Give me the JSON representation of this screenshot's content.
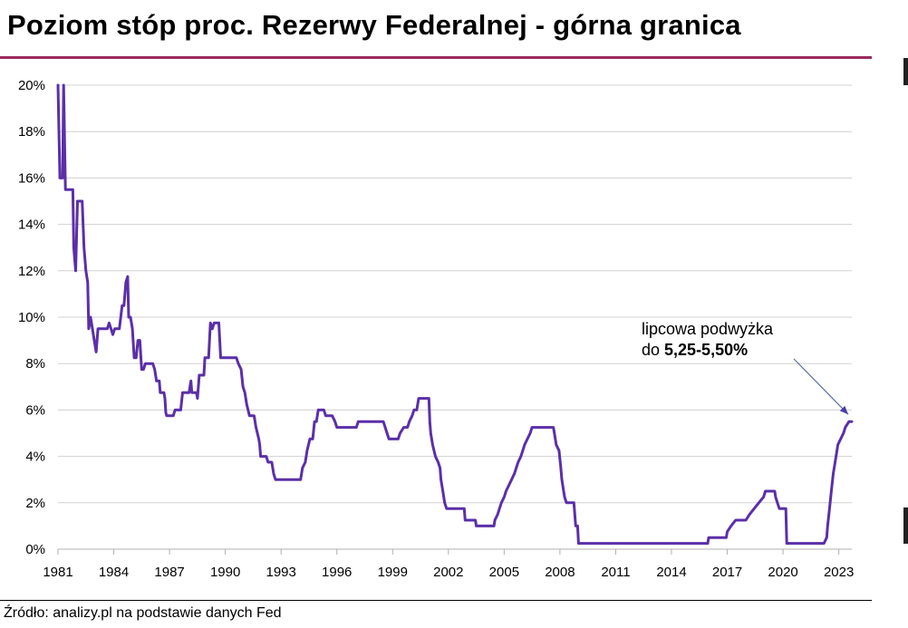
{
  "title": "Poziom stóp proc. Rezerwy Federalnej - górna granica",
  "source": "Źródło: analizy.pl na podstawie danych Fed",
  "colors": {
    "line": "#5b2fa8",
    "accent_rule": "#9c2a5e",
    "grid": "#d0d0d0"
  },
  "chart_data": {
    "type": "line",
    "title": "Poziom stóp proc. Rezerwy Federalnej - górna granica",
    "xlabel": "",
    "ylabel": "",
    "xlim": [
      1981,
      2023.7
    ],
    "ylim": [
      0,
      20
    ],
    "x_ticks": [
      1981,
      1984,
      1987,
      1990,
      1993,
      1996,
      1999,
      2002,
      2005,
      2008,
      2011,
      2014,
      2017,
      2020,
      2023
    ],
    "y_ticks": [
      0,
      2,
      4,
      6,
      8,
      10,
      12,
      14,
      16,
      18,
      20
    ],
    "y_tick_labels": [
      "0%",
      "2%",
      "4%",
      "6%",
      "8%",
      "10%",
      "12%",
      "14%",
      "16%",
      "18%",
      "20%"
    ],
    "grid": "horizontal",
    "legend": "none",
    "annotation": {
      "line1": "lipcowa podwyżka",
      "line2_prefix": "do ",
      "line2_bold": "5,25-5,50%"
    },
    "series": [
      {
        "values": [
          [
            1981.0,
            20.0
          ],
          [
            1981.1,
            16.0
          ],
          [
            1981.25,
            16.0
          ],
          [
            1981.3,
            20.0
          ],
          [
            1981.4,
            15.5
          ],
          [
            1981.8,
            15.5
          ],
          [
            1981.85,
            13.0
          ],
          [
            1981.95,
            12.0
          ],
          [
            1982.05,
            15.0
          ],
          [
            1982.3,
            15.0
          ],
          [
            1982.4,
            13.0
          ],
          [
            1982.5,
            12.0
          ],
          [
            1982.6,
            11.5
          ],
          [
            1982.65,
            9.5
          ],
          [
            1982.75,
            10.0
          ],
          [
            1982.85,
            9.5
          ],
          [
            1982.95,
            9.0
          ],
          [
            1983.05,
            8.5
          ],
          [
            1983.15,
            9.5
          ],
          [
            1983.65,
            9.5
          ],
          [
            1983.75,
            9.75
          ],
          [
            1983.85,
            9.5
          ],
          [
            1983.95,
            9.25
          ],
          [
            1984.05,
            9.5
          ],
          [
            1984.3,
            9.5
          ],
          [
            1984.45,
            10.5
          ],
          [
            1984.55,
            10.5
          ],
          [
            1984.65,
            11.5
          ],
          [
            1984.75,
            11.75
          ],
          [
            1984.8,
            10.0
          ],
          [
            1984.9,
            10.0
          ],
          [
            1985.0,
            9.5
          ],
          [
            1985.1,
            8.25
          ],
          [
            1985.2,
            8.25
          ],
          [
            1985.3,
            9.0
          ],
          [
            1985.4,
            9.0
          ],
          [
            1985.5,
            7.75
          ],
          [
            1985.6,
            7.75
          ],
          [
            1985.7,
            8.0
          ],
          [
            1986.1,
            8.0
          ],
          [
            1986.2,
            7.75
          ],
          [
            1986.3,
            7.25
          ],
          [
            1986.45,
            7.25
          ],
          [
            1986.5,
            6.75
          ],
          [
            1986.7,
            6.75
          ],
          [
            1986.75,
            6.5
          ],
          [
            1986.8,
            5.875
          ],
          [
            1986.85,
            5.75
          ],
          [
            1987.2,
            5.75
          ],
          [
            1987.3,
            6.0
          ],
          [
            1987.6,
            6.0
          ],
          [
            1987.7,
            6.75
          ],
          [
            1988.05,
            6.75
          ],
          [
            1988.15,
            7.25
          ],
          [
            1988.2,
            6.75
          ],
          [
            1988.45,
            6.75
          ],
          [
            1988.5,
            6.5
          ],
          [
            1988.6,
            7.5
          ],
          [
            1988.85,
            7.5
          ],
          [
            1988.9,
            8.25
          ],
          [
            1989.1,
            8.25
          ],
          [
            1989.2,
            9.75
          ],
          [
            1989.3,
            9.5
          ],
          [
            1989.4,
            9.75
          ],
          [
            1989.65,
            9.75
          ],
          [
            1989.7,
            9.0
          ],
          [
            1989.75,
            8.25
          ],
          [
            1990.6,
            8.25
          ],
          [
            1990.7,
            8.0
          ],
          [
            1990.85,
            7.75
          ],
          [
            1990.95,
            7.0
          ],
          [
            1991.05,
            6.75
          ],
          [
            1991.15,
            6.25
          ],
          [
            1991.3,
            5.75
          ],
          [
            1991.55,
            5.75
          ],
          [
            1991.65,
            5.25
          ],
          [
            1991.8,
            4.75
          ],
          [
            1991.85,
            4.5
          ],
          [
            1991.9,
            4.0
          ],
          [
            1992.2,
            4.0
          ],
          [
            1992.3,
            3.75
          ],
          [
            1992.5,
            3.75
          ],
          [
            1992.6,
            3.25
          ],
          [
            1992.7,
            3.0
          ],
          [
            1994.05,
            3.0
          ],
          [
            1994.15,
            3.5
          ],
          [
            1994.3,
            3.75
          ],
          [
            1994.4,
            4.25
          ],
          [
            1994.55,
            4.75
          ],
          [
            1994.7,
            4.75
          ],
          [
            1994.8,
            5.5
          ],
          [
            1994.9,
            5.5
          ],
          [
            1995.0,
            6.0
          ],
          [
            1995.3,
            6.0
          ],
          [
            1995.4,
            5.75
          ],
          [
            1995.75,
            5.75
          ],
          [
            1995.9,
            5.5
          ],
          [
            1996.0,
            5.25
          ],
          [
            1997.05,
            5.25
          ],
          [
            1997.15,
            5.5
          ],
          [
            1998.5,
            5.5
          ],
          [
            1998.6,
            5.25
          ],
          [
            1998.7,
            5.0
          ],
          [
            1998.8,
            4.75
          ],
          [
            1999.3,
            4.75
          ],
          [
            1999.4,
            5.0
          ],
          [
            1999.6,
            5.25
          ],
          [
            1999.8,
            5.25
          ],
          [
            1999.9,
            5.5
          ],
          [
            2000.05,
            5.75
          ],
          [
            2000.15,
            6.0
          ],
          [
            2000.3,
            6.0
          ],
          [
            2000.4,
            6.5
          ],
          [
            2000.95,
            6.5
          ],
          [
            2001.0,
            5.5
          ],
          [
            2001.05,
            5.0
          ],
          [
            2001.15,
            4.5
          ],
          [
            2001.3,
            4.0
          ],
          [
            2001.45,
            3.75
          ],
          [
            2001.55,
            3.5
          ],
          [
            2001.6,
            3.0
          ],
          [
            2001.7,
            2.5
          ],
          [
            2001.8,
            2.0
          ],
          [
            2001.9,
            1.75
          ],
          [
            2002.85,
            1.75
          ],
          [
            2002.9,
            1.25
          ],
          [
            2003.45,
            1.25
          ],
          [
            2003.5,
            1.0
          ],
          [
            2004.45,
            1.0
          ],
          [
            2004.5,
            1.25
          ],
          [
            2004.65,
            1.5
          ],
          [
            2004.75,
            1.75
          ],
          [
            2004.85,
            2.0
          ],
          [
            2005.0,
            2.25
          ],
          [
            2005.1,
            2.5
          ],
          [
            2005.25,
            2.75
          ],
          [
            2005.4,
            3.0
          ],
          [
            2005.55,
            3.25
          ],
          [
            2005.65,
            3.5
          ],
          [
            2005.75,
            3.75
          ],
          [
            2005.9,
            4.0
          ],
          [
            2006.0,
            4.25
          ],
          [
            2006.1,
            4.5
          ],
          [
            2006.25,
            4.75
          ],
          [
            2006.4,
            5.0
          ],
          [
            2006.5,
            5.25
          ],
          [
            2007.65,
            5.25
          ],
          [
            2007.75,
            4.75
          ],
          [
            2007.8,
            4.5
          ],
          [
            2007.95,
            4.25
          ],
          [
            2008.05,
            3.5
          ],
          [
            2008.1,
            3.0
          ],
          [
            2008.25,
            2.25
          ],
          [
            2008.35,
            2.0
          ],
          [
            2008.75,
            2.0
          ],
          [
            2008.8,
            1.5
          ],
          [
            2008.85,
            1.0
          ],
          [
            2008.95,
            1.0
          ],
          [
            2009.0,
            0.25
          ],
          [
            2015.95,
            0.25
          ],
          [
            2016.0,
            0.5
          ],
          [
            2016.95,
            0.5
          ],
          [
            2017.0,
            0.75
          ],
          [
            2017.2,
            1.0
          ],
          [
            2017.45,
            1.25
          ],
          [
            2018.0,
            1.25
          ],
          [
            2018.2,
            1.5
          ],
          [
            2018.45,
            1.75
          ],
          [
            2018.7,
            2.0
          ],
          [
            2018.95,
            2.25
          ],
          [
            2019.05,
            2.5
          ],
          [
            2019.55,
            2.5
          ],
          [
            2019.6,
            2.25
          ],
          [
            2019.7,
            2.0
          ],
          [
            2019.8,
            1.75
          ],
          [
            2020.15,
            1.75
          ],
          [
            2020.2,
            0.25
          ],
          [
            2022.2,
            0.25
          ],
          [
            2022.35,
            0.5
          ],
          [
            2022.4,
            1.0
          ],
          [
            2022.5,
            1.75
          ],
          [
            2022.6,
            2.5
          ],
          [
            2022.7,
            3.25
          ],
          [
            2022.85,
            4.0
          ],
          [
            2022.95,
            4.5
          ],
          [
            2023.1,
            4.75
          ],
          [
            2023.25,
            5.0
          ],
          [
            2023.35,
            5.25
          ],
          [
            2023.55,
            5.5
          ],
          [
            2023.7,
            5.5
          ]
        ]
      }
    ]
  }
}
